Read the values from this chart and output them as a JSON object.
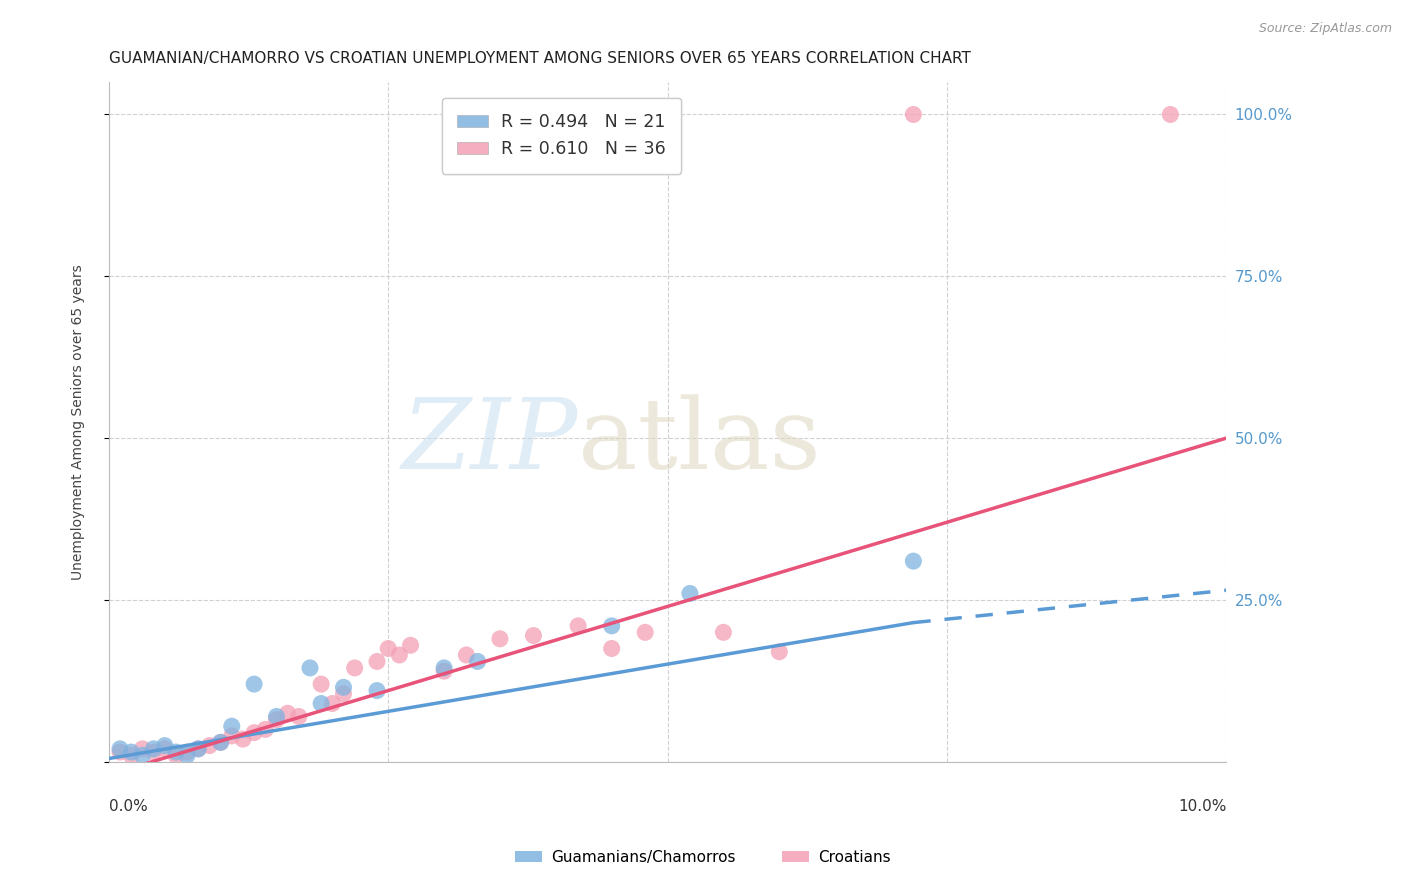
{
  "title": "GUAMANIAN/CHAMORRO VS CROATIAN UNEMPLOYMENT AMONG SENIORS OVER 65 YEARS CORRELATION CHART",
  "source": "Source: ZipAtlas.com",
  "ylabel": "Unemployment Among Seniors over 65 years",
  "xmin": 0.0,
  "xmax": 0.1,
  "ymin": 0.0,
  "ymax": 1.05,
  "guamanian_color": "#7fb3e0",
  "croatian_color": "#f4a0b5",
  "guamanian_R": 0.494,
  "guamanian_N": 21,
  "croatian_R": 0.61,
  "croatian_N": 36,
  "legend_label1": "Guamanians/Chamorros",
  "legend_label2": "Croatians",
  "title_fontsize": 11,
  "source_fontsize": 9,
  "guamanian_x": [
    0.001,
    0.002,
    0.003,
    0.004,
    0.005,
    0.006,
    0.007,
    0.008,
    0.01,
    0.011,
    0.013,
    0.015,
    0.018,
    0.019,
    0.021,
    0.024,
    0.03,
    0.033,
    0.045,
    0.052,
    0.072
  ],
  "guamanian_y": [
    0.02,
    0.015,
    0.01,
    0.02,
    0.025,
    0.015,
    0.01,
    0.02,
    0.03,
    0.055,
    0.12,
    0.07,
    0.145,
    0.09,
    0.115,
    0.11,
    0.145,
    0.155,
    0.21,
    0.26,
    0.31
  ],
  "croatian_x": [
    0.001,
    0.002,
    0.003,
    0.004,
    0.005,
    0.006,
    0.007,
    0.008,
    0.009,
    0.01,
    0.011,
    0.012,
    0.013,
    0.014,
    0.015,
    0.016,
    0.017,
    0.019,
    0.02,
    0.021,
    0.022,
    0.024,
    0.025,
    0.026,
    0.027,
    0.03,
    0.032,
    0.035,
    0.038,
    0.042,
    0.045,
    0.048,
    0.055,
    0.06,
    0.072,
    0.095
  ],
  "croatian_y": [
    0.015,
    0.01,
    0.02,
    0.015,
    0.02,
    0.01,
    0.015,
    0.02,
    0.025,
    0.03,
    0.04,
    0.035,
    0.045,
    0.05,
    0.065,
    0.075,
    0.07,
    0.12,
    0.09,
    0.105,
    0.145,
    0.155,
    0.175,
    0.165,
    0.18,
    0.14,
    0.165,
    0.19,
    0.195,
    0.21,
    0.175,
    0.2,
    0.2,
    0.17,
    1.0,
    1.0
  ],
  "trend_gua_x0": 0.0,
  "trend_gua_x1": 0.072,
  "trend_gua_dash_x1": 0.1,
  "trend_cro_x0": 0.0,
  "trend_cro_x1": 0.1,
  "trend_gua_y0": 0.005,
  "trend_gua_y1": 0.215,
  "trend_gua_dash_y1": 0.265,
  "trend_cro_y0": -0.02,
  "trend_cro_y1": 0.5,
  "right_yticklabels": [
    "",
    "25.0%",
    "50.0%",
    "75.0%",
    "100.0%"
  ],
  "right_ytick_color": "#5599cc"
}
